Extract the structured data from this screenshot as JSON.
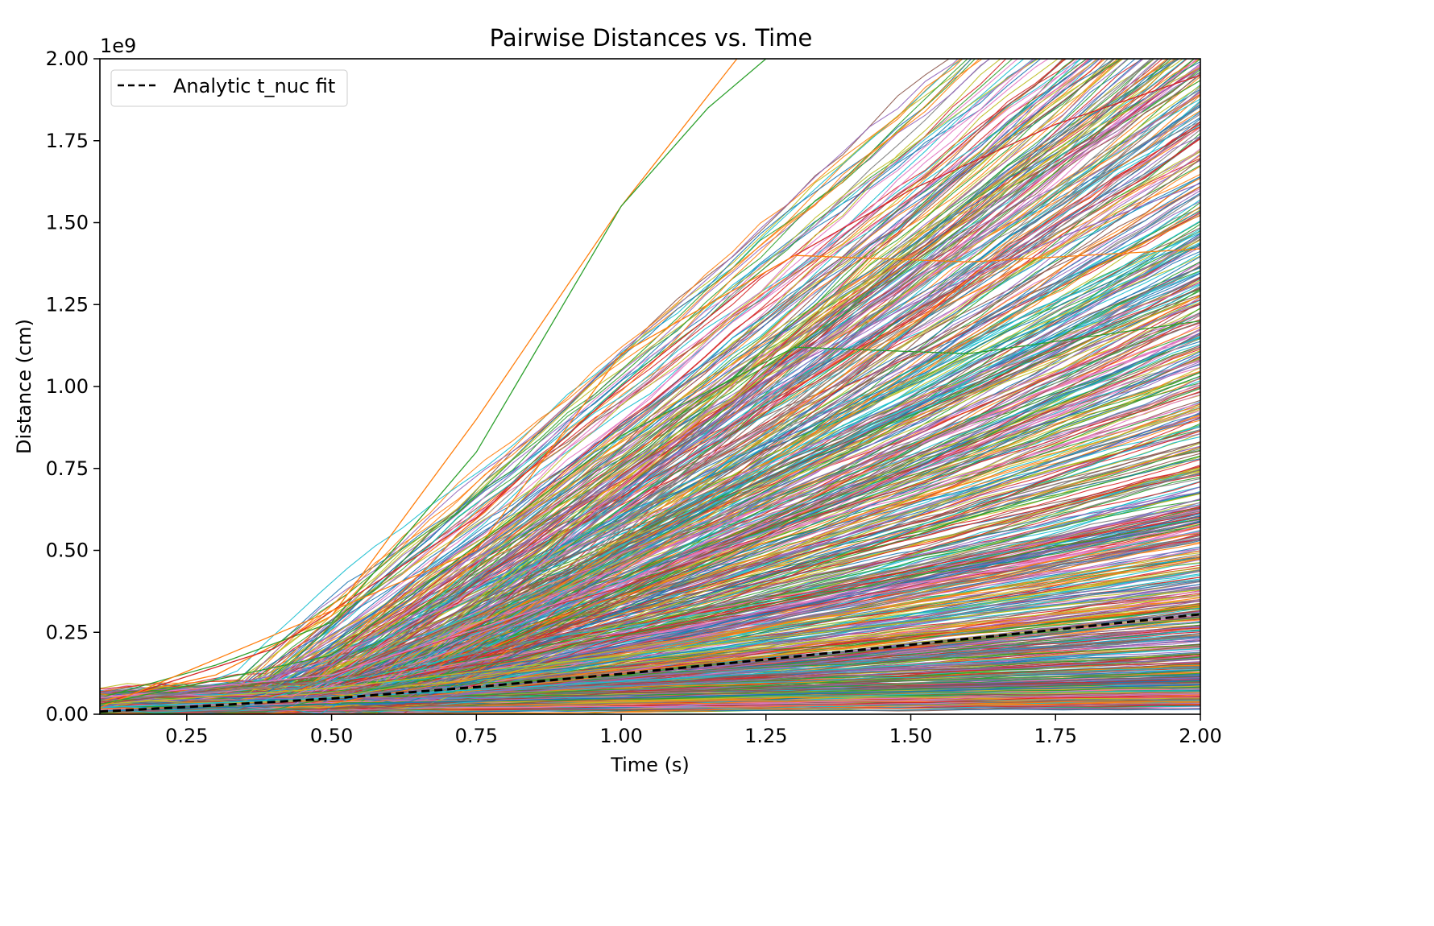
{
  "chart_data": {
    "type": "line",
    "title": "Pairwise Distances vs. Time",
    "xlabel": "Time (s)",
    "ylabel": "Distance (cm)",
    "y_offset_label": "1e9",
    "xlim": [
      0.1,
      2.0
    ],
    "ylim": [
      0,
      2.0
    ],
    "y_scale_factor": 1000000000.0,
    "grid": false,
    "legend_position": "top-left",
    "x_ticks": [
      "0.25",
      "0.50",
      "0.75",
      "1.00",
      "1.25",
      "1.50",
      "1.75",
      "2.00"
    ],
    "y_ticks": [
      "0.00",
      "0.25",
      "0.50",
      "0.75",
      "1.00",
      "1.25",
      "1.50",
      "1.75",
      "2.00"
    ],
    "palette": [
      "#1f77b4",
      "#ff7f0e",
      "#2ca02c",
      "#d62728",
      "#9467bd",
      "#8c564b",
      "#e377c2",
      "#7f7f7f",
      "#bcbd22",
      "#17becf"
    ],
    "series": [
      {
        "name": "Analytic t_nuc fit",
        "style": "dashed",
        "color": "#000000",
        "x": [
          0.1,
          0.25,
          0.5,
          0.75,
          1.0,
          1.25,
          1.5,
          1.75,
          2.0
        ],
        "y": [
          0.008,
          0.022,
          0.048,
          0.083,
          0.123,
          0.167,
          0.212,
          0.258,
          0.305
        ]
      },
      {
        "x": [
          0.1,
          0.3,
          0.5,
          0.75,
          1.0,
          1.2
        ],
        "y": [
          0.04,
          0.12,
          0.3,
          0.9,
          1.55,
          2.0
        ]
      },
      {
        "x": [
          0.1,
          0.3,
          0.5,
          0.75,
          1.0,
          1.15,
          1.25
        ],
        "y": [
          0.05,
          0.15,
          0.28,
          0.8,
          1.55,
          1.85,
          2.0
        ]
      },
      {
        "x": [
          0.1,
          0.4,
          0.75,
          1.0,
          1.25,
          1.5,
          1.75,
          2.0
        ],
        "y": [
          0.03,
          0.2,
          0.6,
          1.0,
          1.35,
          1.6,
          1.8,
          1.95
        ]
      },
      {
        "x": [
          0.1,
          0.5,
          0.75,
          1.0,
          1.25,
          1.5,
          1.75,
          2.0
        ],
        "y": [
          0.02,
          0.15,
          0.42,
          0.72,
          1.02,
          1.25,
          1.45,
          1.62
        ]
      },
      {
        "x": [
          0.1,
          0.5,
          0.75,
          1.0,
          1.25,
          1.5,
          1.75,
          2.0
        ],
        "y": [
          0.03,
          0.12,
          0.3,
          0.52,
          0.72,
          0.92,
          1.12,
          1.3
        ]
      },
      {
        "x": [
          0.1,
          0.5,
          1.0,
          1.5,
          2.0
        ],
        "y": [
          0.05,
          0.12,
          0.4,
          0.68,
          0.95
        ]
      },
      {
        "x": [
          0.1,
          0.5,
          1.0,
          1.5,
          2.0
        ],
        "y": [
          0.04,
          0.1,
          0.28,
          0.45,
          0.62
        ]
      },
      {
        "x": [
          0.1,
          0.5,
          1.0,
          1.5,
          2.0
        ],
        "y": [
          0.03,
          0.08,
          0.18,
          0.28,
          0.38
        ]
      },
      {
        "x": [
          0.1,
          0.5,
          1.0,
          1.5,
          2.0
        ],
        "y": [
          0.02,
          0.05,
          0.1,
          0.15,
          0.2
        ]
      },
      {
        "x": [
          0.1,
          0.5,
          1.0,
          1.5,
          2.0
        ],
        "y": [
          0.01,
          0.03,
          0.05,
          0.07,
          0.09
        ]
      },
      {
        "x": [
          0.1,
          0.75,
          1.0,
          1.3,
          1.6,
          2.0
        ],
        "y": [
          0.02,
          0.5,
          1.1,
          1.4,
          1.38,
          1.42
        ]
      },
      {
        "x": [
          0.1,
          0.5,
          1.0,
          1.3,
          1.6,
          2.0
        ],
        "y": [
          0.03,
          0.18,
          0.85,
          1.12,
          1.1,
          1.2
        ]
      }
    ]
  }
}
